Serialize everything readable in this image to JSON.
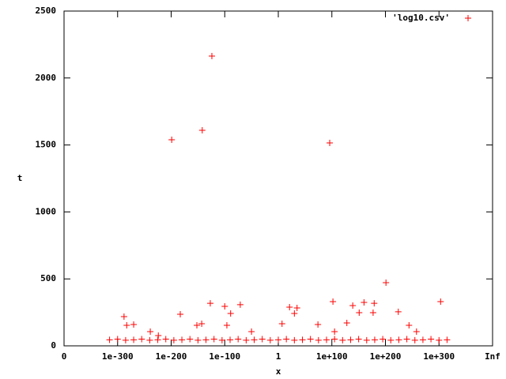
{
  "chart_data": {
    "type": "scatter",
    "xlabel": "x",
    "ylabel": "t",
    "xlim": [
      -400,
      400
    ],
    "xticks": [
      {
        "value": -400,
        "label": "0"
      },
      {
        "value": -300,
        "label": "1e-300"
      },
      {
        "value": -200,
        "label": "1e-200"
      },
      {
        "value": -100,
        "label": "1e-100"
      },
      {
        "value": 0,
        "label": "1"
      },
      {
        "value": 100,
        "label": "1e+100"
      },
      {
        "value": 200,
        "label": "1e+200"
      },
      {
        "value": 300,
        "label": "1e+300"
      },
      {
        "value": 400,
        "label": "Inf"
      }
    ],
    "ylim": [
      0,
      2500
    ],
    "yticks": [
      0,
      500,
      1000,
      1500,
      2000,
      2500
    ],
    "legend": "top-right",
    "series": [
      {
        "name": "'log10.csv'",
        "color": "#ff0000",
        "x": [
          -315,
          -300,
          -285,
          -270,
          -255,
          -240,
          -225,
          -210,
          -195,
          -180,
          -165,
          -150,
          -135,
          -120,
          -105,
          -90,
          -75,
          -60,
          -45,
          -30,
          -15,
          0,
          15,
          30,
          45,
          60,
          75,
          90,
          105,
          120,
          135,
          150,
          165,
          180,
          195,
          210,
          225,
          240,
          255,
          270,
          285,
          300,
          315,
          -288,
          -283,
          -270,
          -199,
          -142,
          -124,
          -183,
          -152,
          -143,
          -127,
          -100,
          -96,
          -89,
          -71,
          -50,
          7,
          21,
          30,
          35,
          74,
          96,
          102,
          105,
          128,
          139,
          151,
          160,
          177,
          179,
          201,
          224,
          244,
          303,
          -239,
          258,
          -224
        ],
        "values": [
          45,
          50,
          42,
          45,
          50,
          42,
          45,
          50,
          42,
          45,
          50,
          42,
          45,
          50,
          42,
          45,
          50,
          42,
          45,
          50,
          42,
          45,
          50,
          42,
          45,
          50,
          42,
          45,
          50,
          42,
          45,
          50,
          42,
          45,
          50,
          42,
          45,
          50,
          42,
          45,
          50,
          42,
          45,
          218,
          153,
          159,
          1539,
          1610,
          2164,
          236,
          153,
          165,
          318,
          295,
          153,
          242,
          307,
          106,
          165,
          289,
          242,
          283,
          159,
          1515,
          330,
          106,
          171,
          301,
          248,
          324,
          248,
          318,
          472,
          254,
          153,
          330,
          106,
          106,
          77
        ]
      }
    ]
  }
}
